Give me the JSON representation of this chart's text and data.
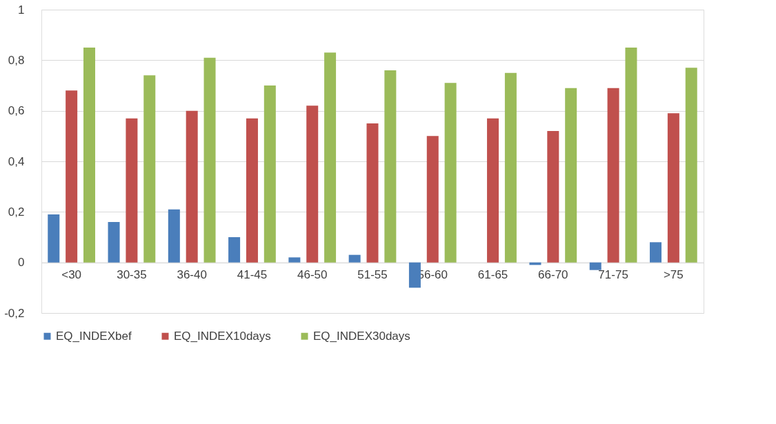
{
  "chart_data": {
    "type": "bar",
    "categories": [
      "<30",
      "30-35",
      "36-40",
      "41-45",
      "46-50",
      "51-55",
      "56-60",
      "61-65",
      "66-70",
      "71-75",
      ">75"
    ],
    "series": [
      {
        "name": "EQ_INDEXbef",
        "color": "#4a7ebb",
        "values": [
          0.19,
          0.16,
          0.21,
          0.1,
          0.02,
          0.03,
          -0.1,
          0.0,
          -0.01,
          -0.03,
          0.08
        ]
      },
      {
        "name": "EQ_INDEX10days",
        "color": "#c0504d",
        "values": [
          0.68,
          0.57,
          0.6,
          0.57,
          0.62,
          0.55,
          0.5,
          0.57,
          0.52,
          0.69,
          0.59
        ]
      },
      {
        "name": "EQ_INDEX30days",
        "color": "#9bbb59",
        "values": [
          0.85,
          0.74,
          0.81,
          0.7,
          0.83,
          0.76,
          0.71,
          0.75,
          0.69,
          0.85,
          0.77
        ]
      }
    ],
    "ylim": [
      -0.2,
      1
    ],
    "yticks": [
      {
        "value": -0.2,
        "label": "-0,2"
      },
      0,
      {
        "value": 0.2,
        "label": "0,2"
      },
      {
        "value": 0.4,
        "label": "0,4"
      },
      {
        "value": 0.6,
        "label": "0,6"
      },
      {
        "value": 0.8,
        "label": "0,8"
      },
      1
    ],
    "grid": "y",
    "legend": "bottom"
  }
}
